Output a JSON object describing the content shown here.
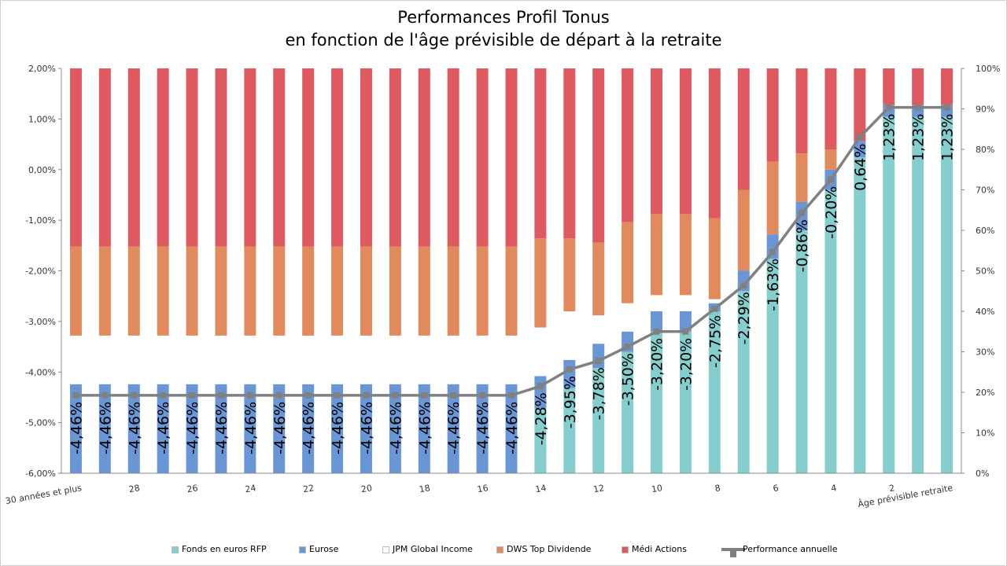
{
  "chart_data": {
    "type": "bar",
    "stacked": true,
    "title_line1": "Performances Profil Tonus",
    "title_line2": "en fonction de l'âge prévisible de départ à la retraite",
    "categories": [
      "30 années et plus",
      "29",
      "28",
      "27",
      "26",
      "25",
      "24",
      "23",
      "22",
      "21",
      "20",
      "19",
      "18",
      "17",
      "16",
      "15",
      "14",
      "13",
      "12",
      "11",
      "10",
      "9",
      "8",
      "7",
      "6",
      "5",
      "4",
      "3",
      "2",
      "1",
      "Âge prévisible retraite"
    ],
    "x_tick_labels": [
      "30 années et plus",
      "28",
      "26",
      "24",
      "22",
      "20",
      "18",
      "16",
      "14",
      "12",
      "10",
      "8",
      "6",
      "4",
      "2",
      "Âge prévisible retraite"
    ],
    "left_axis": {
      "min": -6,
      "max": 2,
      "step": 1,
      "tick_labels": [
        "-6,00%",
        "-5,00%",
        "-4,00%",
        "-3,00%",
        "-2,00%",
        "-1,00%",
        "0,00%",
        "1,00%",
        "2,00%"
      ]
    },
    "right_axis": {
      "min": 0,
      "max": 100,
      "step": 10,
      "tick_labels": [
        "0%",
        "10%",
        "20%",
        "30%",
        "40%",
        "50%",
        "60%",
        "70%",
        "80%",
        "90%",
        "100%"
      ]
    },
    "series": [
      {
        "name": "Fonds en euros RFP",
        "color": "#86cece",
        "axis": "right",
        "values": [
          0,
          0,
          0,
          0,
          0,
          0,
          0,
          0,
          0,
          0,
          0,
          0,
          0,
          0,
          0,
          0,
          16,
          21,
          26,
          30,
          35,
          35,
          40,
          45,
          53,
          60,
          70,
          78,
          88,
          88,
          88
        ]
      },
      {
        "name": "Eurose",
        "color": "#6b96d6",
        "axis": "right",
        "values": [
          22,
          22,
          22,
          22,
          22,
          22,
          22,
          22,
          22,
          22,
          22,
          22,
          22,
          22,
          22,
          22,
          8,
          7,
          6,
          5,
          5,
          5,
          2,
          5,
          6,
          7,
          5,
          4,
          3,
          3,
          3
        ]
      },
      {
        "name": "JPM Global Income",
        "color": "#ffffff",
        "axis": "right",
        "values": [
          12,
          12,
          12,
          12,
          12,
          12,
          12,
          12,
          12,
          12,
          12,
          12,
          12,
          12,
          12,
          12,
          12,
          12,
          7,
          7,
          4,
          4,
          1,
          0,
          0,
          0,
          0,
          0,
          0,
          0,
          0
        ]
      },
      {
        "name": "DWS Top Dividende",
        "color": "#e08a5e",
        "axis": "right",
        "values": [
          22,
          22,
          22,
          22,
          22,
          22,
          22,
          22,
          22,
          22,
          22,
          22,
          22,
          22,
          22,
          22,
          22,
          18,
          18,
          20,
          20,
          20,
          20,
          20,
          18,
          12,
          5,
          0,
          0,
          0,
          0
        ]
      },
      {
        "name": "Médi Actions",
        "color": "#de5a60",
        "axis": "right",
        "values": [
          44,
          44,
          44,
          44,
          44,
          44,
          44,
          44,
          44,
          44,
          44,
          44,
          44,
          44,
          44,
          44,
          42,
          42,
          43,
          38,
          36,
          36,
          37,
          30,
          23,
          21,
          20,
          18,
          9,
          9,
          9
        ]
      },
      {
        "name": "Performance annuelle",
        "color": "#808080",
        "type": "line",
        "axis": "left",
        "values": [
          -4.46,
          -4.46,
          -4.46,
          -4.46,
          -4.46,
          -4.46,
          -4.46,
          -4.46,
          -4.46,
          -4.46,
          -4.46,
          -4.46,
          -4.46,
          -4.46,
          -4.46,
          -4.46,
          -4.28,
          -3.95,
          -3.78,
          -3.5,
          -3.2,
          -3.2,
          -2.75,
          -2.29,
          -1.63,
          -0.86,
          -0.2,
          0.64,
          1.23,
          1.23,
          1.23
        ]
      }
    ],
    "data_labels": [
      "-4,46%",
      "-4,46%",
      "-4,46%",
      "-4,46%",
      "-4,46%",
      "-4,46%",
      "-4,46%",
      "-4,46%",
      "-4,46%",
      "-4,46%",
      "-4,46%",
      "-4,46%",
      "-4,46%",
      "-4,46%",
      "-4,46%",
      "-4,46%",
      "-4,28%",
      "-3,95%",
      "-3,78%",
      "-3,50%",
      "-3,20%",
      "-3,20%",
      "-2,75%",
      "-2,29%",
      "-1,63%",
      "-0,86%",
      "-0,20%",
      "0,64%",
      "1,23%",
      "1,23%",
      "1,23%"
    ],
    "legend_position": "bottom",
    "grid": false
  }
}
